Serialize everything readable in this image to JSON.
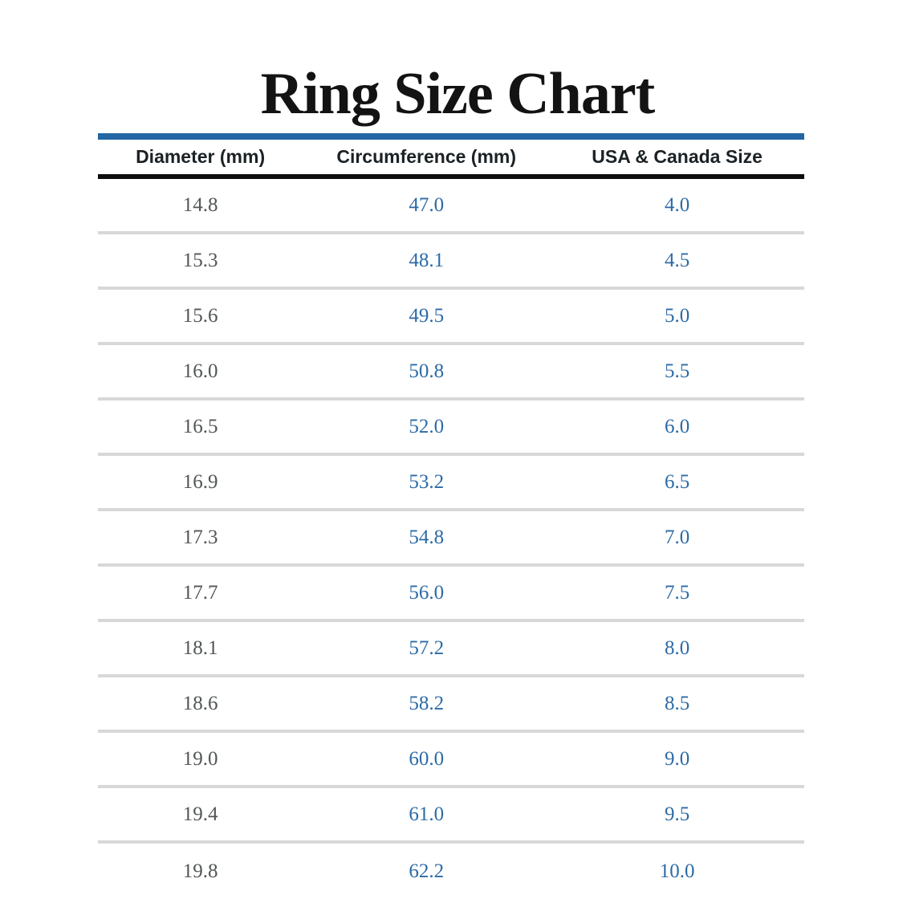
{
  "title": "Ring Size Chart",
  "colors": {
    "background": "#ffffff",
    "title_text": "#131313",
    "accent_rule_blue": "#2366a3",
    "header_text": "#1b2125",
    "header_rule_black": "#0d0d0d",
    "row_separator_gray": "#d8d8d8",
    "diameter_value_gray": "#515755",
    "value_blue": "#2d6ba6"
  },
  "chart_data": {
    "type": "table",
    "title": "Ring Size Chart",
    "columns": [
      "Diameter (mm)",
      "Circumference (mm)",
      "USA & Canada Size"
    ],
    "rows": [
      [
        "14.8",
        "47.0",
        "4.0"
      ],
      [
        "15.3",
        "48.1",
        "4.5"
      ],
      [
        "15.6",
        "49.5",
        "5.0"
      ],
      [
        "16.0",
        "50.8",
        "5.5"
      ],
      [
        "16.5",
        "52.0",
        "6.0"
      ],
      [
        "16.9",
        "53.2",
        "6.5"
      ],
      [
        "17.3",
        "54.8",
        "7.0"
      ],
      [
        "17.7",
        "56.0",
        "7.5"
      ],
      [
        "18.1",
        "57.2",
        "8.0"
      ],
      [
        "18.6",
        "58.2",
        "8.5"
      ],
      [
        "19.0",
        "60.0",
        "9.0"
      ],
      [
        "19.4",
        "61.0",
        "9.5"
      ],
      [
        "19.8",
        "62.2",
        "10.0"
      ]
    ]
  }
}
